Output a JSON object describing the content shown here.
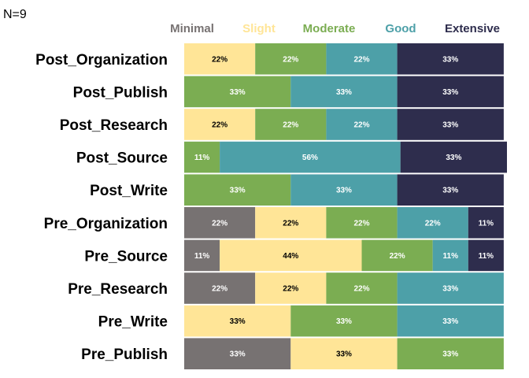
{
  "chart_data": {
    "type": "bar",
    "orientation": "horizontal",
    "stacked": true,
    "annotation": "N=9",
    "levels": [
      "Minimal",
      "Slight",
      "Moderate",
      "Good",
      "Extensive"
    ],
    "colors": {
      "Minimal": "#777272",
      "Slight": "#FFE597",
      "Moderate": "#7BAD52",
      "Good": "#4DA0A8",
      "Extensive": "#2E2D4D"
    },
    "label_colors": {
      "Minimal": "#ffffff",
      "Slight": "#000000",
      "Moderate": "#ffffff",
      "Good": "#ffffff",
      "Extensive": "#ffffff"
    },
    "xlim": [
      0,
      100
    ],
    "rows": [
      {
        "name": "Post_Organization",
        "values": {
          "Minimal": 0,
          "Slight": 22,
          "Moderate": 22,
          "Good": 22,
          "Extensive": 33
        },
        "labels": {
          "Slight": "22%",
          "Moderate": "22%",
          "Good": "22%",
          "Extensive": "33%"
        }
      },
      {
        "name": "Post_Publish",
        "values": {
          "Minimal": 0,
          "Slight": 0,
          "Moderate": 33,
          "Good": 33,
          "Extensive": 33
        },
        "labels": {
          "Moderate": "33%",
          "Good": "33%",
          "Extensive": "33%"
        }
      },
      {
        "name": "Post_Research",
        "values": {
          "Minimal": 0,
          "Slight": 22,
          "Moderate": 22,
          "Good": 22,
          "Extensive": 33
        },
        "labels": {
          "Slight": "22%",
          "Moderate": "22%",
          "Good": "22%",
          "Extensive": "33%"
        }
      },
      {
        "name": "Post_Source",
        "values": {
          "Minimal": 0,
          "Slight": 0,
          "Moderate": 11,
          "Good": 56,
          "Extensive": 33
        },
        "labels": {
          "Moderate": "11%",
          "Good": "56%",
          "Extensive": "33%"
        }
      },
      {
        "name": "Post_Write",
        "values": {
          "Minimal": 0,
          "Slight": 0,
          "Moderate": 33,
          "Good": 33,
          "Extensive": 33
        },
        "labels": {
          "Moderate": "33%",
          "Good": "33%",
          "Extensive": "33%"
        }
      },
      {
        "name": "Pre_Organization",
        "values": {
          "Minimal": 22,
          "Slight": 22,
          "Moderate": 22,
          "Good": 22,
          "Extensive": 11
        },
        "labels": {
          "Minimal": "22%",
          "Slight": "22%",
          "Moderate": "22%",
          "Good": "22%",
          "Extensive": "11%"
        }
      },
      {
        "name": "Pre_Source",
        "values": {
          "Minimal": 11,
          "Slight": 44,
          "Moderate": 22,
          "Good": 11,
          "Extensive": 11
        },
        "labels": {
          "Minimal": "11%",
          "Slight": "44%",
          "Moderate": "22%",
          "Good": "11%",
          "Extensive": "11%"
        }
      },
      {
        "name": "Pre_Research",
        "values": {
          "Minimal": 22,
          "Slight": 22,
          "Moderate": 22,
          "Good": 33,
          "Extensive": 0
        },
        "labels": {
          "Minimal": "22%",
          "Slight": "22%",
          "Moderate": "22%",
          "Good": "33%"
        }
      },
      {
        "name": "Pre_Write",
        "values": {
          "Minimal": 0,
          "Slight": 33,
          "Moderate": 33,
          "Good": 33,
          "Extensive": 0
        },
        "labels": {
          "Slight": "33%",
          "Moderate": "33%",
          "Good": "33%"
        }
      },
      {
        "name": "Pre_Publish",
        "values": {
          "Minimal": 33,
          "Slight": 33,
          "Moderate": 33,
          "Good": 0,
          "Extensive": 0
        },
        "labels": {
          "Minimal": "33%",
          "Slight": "33%",
          "Moderate": "33%"
        }
      }
    ]
  }
}
